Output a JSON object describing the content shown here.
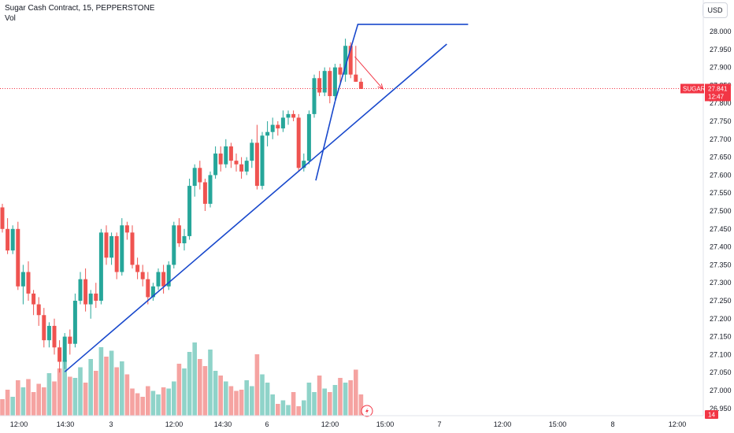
{
  "header": {
    "title": "Sugar Cash Contract, 15, PEPPERSTONE",
    "indicator": "Vol"
  },
  "currency_button": "USD",
  "price_badge": {
    "symbol": "SUGAR",
    "price": "27.841",
    "countdown": "12:47"
  },
  "time_badge": "14",
  "colors": {
    "up": "#26a69a",
    "down": "#ef5350",
    "vol_up": "#8fd3c9",
    "vol_down": "#f5a3a1",
    "trendline": "#1848cc",
    "arrow": "#f23645",
    "price_line": "#f23645"
  },
  "chart_data": {
    "type": "candlestick",
    "y_ticks": [
      "28.000",
      "27.950",
      "27.900",
      "27.850",
      "27.800",
      "27.750",
      "27.700",
      "27.650",
      "27.600",
      "27.550",
      "27.500",
      "27.450",
      "27.400",
      "27.350",
      "27.300",
      "27.250",
      "27.200",
      "27.150",
      "27.100",
      "27.050",
      "27.000",
      "26.950"
    ],
    "ylim": [
      26.94,
      28.02
    ],
    "x_ticks": [
      "12:00",
      "14:30",
      "3",
      "12:00",
      "14:30",
      "6",
      "12:00",
      "15:00",
      "7",
      "12:00",
      "15:00",
      "8",
      "12:00"
    ],
    "last_price": 27.841,
    "candles": [
      [
        27.51,
        27.52,
        27.44,
        27.45
      ],
      [
        27.45,
        27.48,
        27.38,
        27.39
      ],
      [
        27.39,
        27.46,
        27.38,
        27.45
      ],
      [
        27.45,
        27.47,
        27.28,
        27.29
      ],
      [
        27.29,
        27.35,
        27.24,
        27.33
      ],
      [
        27.33,
        27.36,
        27.25,
        27.27
      ],
      [
        27.27,
        27.28,
        27.21,
        27.24
      ],
      [
        27.24,
        27.26,
        27.18,
        27.21
      ],
      [
        27.21,
        27.23,
        27.12,
        27.14
      ],
      [
        27.14,
        27.19,
        27.12,
        27.18
      ],
      [
        27.18,
        27.2,
        27.1,
        27.12
      ],
      [
        27.12,
        27.14,
        27.05,
        27.08
      ],
      [
        27.08,
        27.16,
        27.06,
        27.15
      ],
      [
        27.15,
        27.17,
        27.1,
        27.13
      ],
      [
        27.13,
        27.27,
        27.12,
        27.25
      ],
      [
        27.25,
        27.33,
        27.24,
        27.31
      ],
      [
        27.31,
        27.34,
        27.22,
        27.24
      ],
      [
        27.24,
        27.28,
        27.2,
        27.27
      ],
      [
        27.27,
        27.3,
        27.23,
        27.25
      ],
      [
        27.25,
        27.45,
        27.24,
        27.44
      ],
      [
        27.44,
        27.46,
        27.35,
        27.37
      ],
      [
        27.37,
        27.44,
        27.35,
        27.43
      ],
      [
        27.43,
        27.44,
        27.31,
        27.33
      ],
      [
        27.33,
        27.48,
        27.32,
        27.46
      ],
      [
        27.46,
        27.47,
        27.42,
        27.44
      ],
      [
        27.44,
        27.46,
        27.34,
        27.35
      ],
      [
        27.35,
        27.37,
        27.31,
        27.33
      ],
      [
        27.33,
        27.35,
        27.29,
        27.31
      ],
      [
        27.31,
        27.33,
        27.24,
        27.26
      ],
      [
        27.26,
        27.3,
        27.25,
        27.29
      ],
      [
        27.29,
        27.34,
        27.28,
        27.33
      ],
      [
        27.33,
        27.35,
        27.27,
        27.29
      ],
      [
        27.29,
        27.36,
        27.28,
        27.35
      ],
      [
        27.35,
        27.47,
        27.34,
        27.46
      ],
      [
        27.46,
        27.48,
        27.4,
        27.41
      ],
      [
        27.41,
        27.45,
        27.39,
        27.43
      ],
      [
        27.43,
        27.59,
        27.42,
        27.57
      ],
      [
        27.57,
        27.63,
        27.54,
        27.62
      ],
      [
        27.62,
        27.64,
        27.56,
        27.58
      ],
      [
        27.58,
        27.59,
        27.5,
        27.52
      ],
      [
        27.52,
        27.61,
        27.51,
        27.6
      ],
      [
        27.6,
        27.68,
        27.59,
        27.66
      ],
      [
        27.66,
        27.68,
        27.61,
        27.63
      ],
      [
        27.63,
        27.7,
        27.62,
        27.68
      ],
      [
        27.68,
        27.69,
        27.62,
        27.64
      ],
      [
        27.64,
        27.66,
        27.61,
        27.63
      ],
      [
        27.63,
        27.65,
        27.59,
        27.61
      ],
      [
        27.61,
        27.65,
        27.6,
        27.64
      ],
      [
        27.64,
        27.7,
        27.62,
        27.69
      ],
      [
        27.69,
        27.74,
        27.56,
        27.57
      ],
      [
        27.57,
        27.72,
        27.56,
        27.71
      ],
      [
        27.71,
        27.75,
        27.68,
        27.72
      ],
      [
        27.72,
        27.76,
        27.7,
        27.74
      ],
      [
        27.74,
        27.75,
        27.71,
        27.73
      ],
      [
        27.73,
        27.78,
        27.72,
        27.76
      ],
      [
        27.76,
        27.78,
        27.74,
        27.77
      ],
      [
        27.77,
        27.78,
        27.75,
        27.76
      ],
      [
        27.76,
        27.77,
        27.61,
        27.62
      ],
      [
        27.62,
        27.66,
        27.61,
        27.64
      ],
      [
        27.64,
        27.78,
        27.63,
        27.77
      ],
      [
        27.77,
        27.88,
        27.76,
        27.87
      ],
      [
        27.87,
        27.89,
        27.82,
        27.83
      ],
      [
        27.83,
        27.9,
        27.82,
        27.89
      ],
      [
        27.89,
        27.9,
        27.8,
        27.82
      ],
      [
        27.82,
        27.91,
        27.81,
        27.9
      ],
      [
        27.9,
        27.91,
        27.85,
        27.88
      ],
      [
        27.88,
        27.98,
        27.86,
        27.96
      ],
      [
        27.96,
        27.97,
        27.87,
        27.88
      ],
      [
        27.88,
        27.96,
        27.86,
        27.86
      ],
      [
        27.86,
        27.87,
        27.84,
        27.84
      ]
    ],
    "volume": [
      0.14,
      0.22,
      0.16,
      0.3,
      0.24,
      0.31,
      0.2,
      0.27,
      0.24,
      0.36,
      0.29,
      0.4,
      0.47,
      0.33,
      0.32,
      0.41,
      0.28,
      0.48,
      0.38,
      0.58,
      0.5,
      0.55,
      0.41,
      0.46,
      0.35,
      0.23,
      0.19,
      0.16,
      0.25,
      0.21,
      0.18,
      0.24,
      0.23,
      0.29,
      0.44,
      0.4,
      0.54,
      0.62,
      0.48,
      0.42,
      0.56,
      0.38,
      0.34,
      0.29,
      0.25,
      0.21,
      0.22,
      0.3,
      0.25,
      0.52,
      0.35,
      0.28,
      0.18,
      0.1,
      0.13,
      0.09,
      0.2,
      0.08,
      0.13,
      0.28,
      0.2,
      0.34,
      0.23,
      0.2,
      0.26,
      0.32,
      0.28,
      0.3,
      0.39,
      0.18
    ],
    "trendlines": [
      {
        "points": [
          [
            12,
            27.052
          ],
          [
            85.5,
            27.965
          ]
        ],
        "color": "trendline"
      },
      {
        "points": [
          [
            60.3,
            27.585
          ],
          [
            64.0,
            27.805
          ]
        ],
        "color": "trendline"
      },
      {
        "points": [
          [
            64.0,
            27.805
          ],
          [
            68.4,
            28.02
          ],
          [
            89.6,
            28.02
          ]
        ],
        "color": "trendline"
      }
    ],
    "arrow": {
      "from": [
        67.8,
        27.93
      ],
      "to": [
        73.2,
        27.84
      ],
      "color": "arrow"
    }
  }
}
